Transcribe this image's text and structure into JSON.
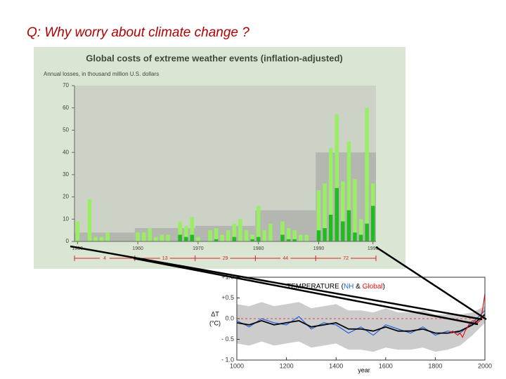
{
  "slide_title": "Q:  Why worry about climate change ?",
  "chart_data": [
    {
      "type": "bar",
      "title": "Global costs of extreme weather events (inflation-adjusted)",
      "subtitle": "Annual losses, in thousand million U.S. dollars",
      "x": [
        1950,
        1951,
        1952,
        1953,
        1954,
        1955,
        1956,
        1957,
        1958,
        1959,
        1960,
        1961,
        1962,
        1963,
        1964,
        1965,
        1966,
        1967,
        1968,
        1969,
        1970,
        1971,
        1972,
        1973,
        1974,
        1975,
        1976,
        1977,
        1978,
        1979,
        1980,
        1981,
        1982,
        1983,
        1984,
        1985,
        1986,
        1987,
        1988,
        1989,
        1990,
        1991,
        1992,
        1993,
        1994,
        1995,
        1996,
        1997,
        1998,
        1999
      ],
      "series": [
        {
          "color": "#99ee66",
          "values": [
            9,
            0,
            19,
            2,
            2,
            4,
            0,
            0,
            0,
            0,
            4,
            4,
            6,
            2,
            3,
            3,
            0,
            9,
            7,
            11,
            2,
            0,
            5,
            6,
            3,
            5,
            8,
            10,
            5,
            3,
            16,
            5,
            8,
            0,
            9,
            6,
            5,
            3,
            3,
            0,
            23,
            26,
            42,
            57,
            27,
            45,
            28,
            10,
            60,
            26
          ]
        },
        {
          "color": "#22bb22",
          "values": [
            0,
            0,
            0,
            0,
            0,
            0,
            0,
            0,
            0,
            0,
            0,
            0,
            0,
            0,
            0,
            0,
            0,
            3,
            2,
            3,
            0,
            0,
            0,
            1,
            0,
            0,
            2,
            0,
            0,
            1,
            2,
            0,
            0,
            0,
            3,
            1,
            1,
            0,
            0,
            0,
            5,
            6,
            12,
            24,
            9,
            14,
            4,
            3,
            8,
            16
          ]
        }
      ],
      "background_steps": {
        "color": "#b4b6b0",
        "x": [
          1950,
          1960,
          1970,
          1980,
          1990
        ],
        "values": [
          4,
          6,
          7,
          14,
          40
        ]
      },
      "decade_labels": [
        "4",
        "13",
        "29",
        "44",
        "72"
      ],
      "xlim": [
        1949.5,
        1999.5
      ],
      "xticks": [
        1950,
        1960,
        1970,
        1980,
        1990,
        1999
      ],
      "ylim": [
        0,
        70
      ],
      "yticks": [
        0,
        10,
        20,
        30,
        40,
        50,
        60,
        70
      ]
    },
    {
      "type": "line",
      "title_parts": [
        "TEMPERATURE  (",
        "NH",
        " & ",
        "Global",
        ")"
      ],
      "ylabel": [
        "ΔT",
        "(°C)"
      ],
      "xlabel": "year",
      "x": [
        1000,
        1050,
        1100,
        1150,
        1200,
        1250,
        1300,
        1350,
        1400,
        1450,
        1500,
        1550,
        1600,
        1650,
        1700,
        1750,
        1800,
        1850,
        1900,
        1950,
        2000
      ],
      "band": {
        "color": "#cccccc",
        "upper": [
          0.35,
          0.3,
          0.4,
          0.3,
          0.35,
          0.4,
          0.25,
          0.3,
          0.35,
          0.2,
          0.2,
          0.15,
          0.25,
          0.15,
          0.15,
          0.2,
          0.1,
          0.1,
          0.1,
          0.15,
          0.3
        ],
        "lower": [
          -0.6,
          -0.65,
          -0.55,
          -0.65,
          -0.6,
          -0.55,
          -0.7,
          -0.65,
          -0.6,
          -0.75,
          -0.75,
          -0.8,
          -0.7,
          -0.75,
          -0.75,
          -0.7,
          -0.8,
          -0.75,
          -0.65,
          -0.4,
          -0.1
        ]
      },
      "series": [
        {
          "color": "#2266dd",
          "values": [
            -0.05,
            -0.2,
            0.0,
            -0.1,
            -0.15,
            0.05,
            -0.25,
            -0.1,
            -0.15,
            -0.35,
            -0.2,
            -0.4,
            -0.15,
            -0.25,
            -0.35,
            -0.2,
            -0.4,
            -0.3,
            -0.35,
            -0.1,
            0.2
          ]
        },
        {
          "color": "#000000",
          "values": [
            -0.1,
            -0.15,
            -0.05,
            -0.15,
            -0.1,
            -0.05,
            -0.2,
            -0.15,
            -0.1,
            -0.25,
            -0.25,
            -0.3,
            -0.2,
            -0.3,
            -0.3,
            -0.25,
            -0.35,
            -0.35,
            -0.3,
            -0.15,
            0.1
          ]
        },
        {
          "color": "#ee1111",
          "x": [
            1860,
            1870,
            1880,
            1890,
            1900,
            1910,
            1920,
            1930,
            1940,
            1950,
            1960,
            1970,
            1980,
            1990,
            2000
          ],
          "values": [
            -0.35,
            -0.3,
            -0.35,
            -0.4,
            -0.35,
            -0.45,
            -0.3,
            -0.2,
            -0.1,
            -0.05,
            -0.05,
            -0.1,
            -0.05,
            0.2,
            0.6
          ]
        }
      ],
      "title_colors": [
        "#000000",
        "#2266dd",
        "#000000",
        "#ee1111",
        "#000000"
      ],
      "xlim": [
        1000,
        2000
      ],
      "xticks": [
        1000,
        1200,
        1400,
        1600,
        1800,
        2000
      ],
      "ylim": [
        -1.0,
        1.0
      ],
      "yticks": [
        {
          "value": -1.0,
          "label": "- 1.0"
        },
        {
          "value": -0.5,
          "label": "- 0.5"
        },
        {
          "value": 0,
          "label": "0.0"
        },
        {
          "value": 0.5,
          "label": "+0.5"
        },
        {
          "value": 1.0,
          "label": "+1.0"
        }
      ]
    }
  ]
}
